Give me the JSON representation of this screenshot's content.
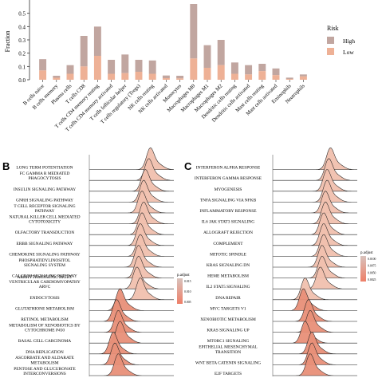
{
  "chart_data": [
    {
      "type": "bar",
      "panel": "A",
      "ylabel": "Fraction",
      "ylim": [
        0,
        0.6
      ],
      "yticks": [
        "0.0",
        "0.1",
        "0.2",
        "0.3",
        "0.4",
        "0.5"
      ],
      "legend_title": "Risk",
      "legend_position": "right",
      "categories": [
        "B cells naive",
        "B cells memory",
        "Plasma cells",
        "T cells CD8",
        "T cells CD4 memory resting",
        "T cells CD4 memory activated",
        "T cells follicular helper",
        "T cells regulatory (Tregs)",
        "NK cells resting",
        "NK cells activated",
        "Monocytes",
        "Macrophages M0",
        "Macrophages M1",
        "Macrophages M2",
        "Dendritic cells resting",
        "Dendritic cells activated",
        "Mast cells resting",
        "Mast cells activated",
        "Eosinophils",
        "Neutrophils"
      ],
      "series": [
        {
          "name": "High",
          "color": "#c1a6a0",
          "values": [
            0.085,
            0.015,
            0.065,
            0.23,
            0.22,
            0.105,
            0.14,
            0.09,
            0.1,
            0.02,
            0.02,
            0.41,
            0.17,
            0.19,
            0.085,
            0.07,
            0.055,
            0.05,
            0.01,
            0.015
          ]
        },
        {
          "name": "Low",
          "color": "#eeb196",
          "values": [
            0.07,
            0.015,
            0.045,
            0.1,
            0.18,
            0.045,
            0.05,
            0.06,
            0.045,
            0.012,
            0.01,
            0.16,
            0.09,
            0.11,
            0.045,
            0.04,
            0.065,
            0.035,
            0.006,
            0.025
          ]
        }
      ]
    },
    {
      "type": "ridge",
      "panel": "B",
      "legend_title": "p.adjust",
      "legend_ticks": [
        "0.015",
        "0.010",
        "0.005"
      ],
      "categories": [
        "LONG TERM POTENTIATION",
        "FC GAMMA R MEDIATED\nPHAGOCYTOSIS",
        "INSULIN SIGNALING PATHWAY",
        "GNRH SIGNALING PATHWAY",
        "T CELL RECEPTOR SIGNALING\nPATHWAY",
        "NATURAL KILLER CELL MEDIATED\nCYTOTOXICITY",
        "OLFACTORY TRANSDUCTION",
        "ERBB SIGNALING PATHWAY",
        "CHEMOKINE SIGNALING PATHWAY",
        "PHOSPHATIDYLINOSITOL\nSIGNALING SYSTEM",
        "CALCIUM SIGNALING PATHWAY",
        "ARRHYTHMOGENIC RIGHT\nVENTRICULAR CARDIOMYOPATHY\nARVC",
        "ENDOCYTOSIS",
        "GLUTATHIONE METABOLISM",
        "RETINOL METABOLISM",
        "METABOLISM OF XENOBIOTICS BY\nCYTOCHROME P450",
        "BASAL CELL CARCINOMA",
        "DNA REPLICATION",
        "ASCORBATE AND ALDARATE\nMETABOLISM",
        "PENTOSE AND GLUCURONATE\nINTERCONVERSIONS"
      ],
      "peaks": [
        0.72,
        0.7,
        0.66,
        0.64,
        0.62,
        0.64,
        0.62,
        0.6,
        0.6,
        0.58,
        0.58,
        0.56,
        0.6,
        0.36,
        0.32,
        0.34,
        0.36,
        0.28,
        0.3,
        0.34
      ]
    },
    {
      "type": "ridge",
      "panel": "C",
      "legend_title": "p.adjust",
      "legend_ticks": [
        "0.0100",
        "0.0075",
        "0.0050",
        "0.0025"
      ],
      "categories": [
        "INTERFERON ALPHA RESPONSE",
        "INTERFERON GAMMA RESPONSE",
        "MYOGENESIS",
        "TNFA SIGNALING VIA NFKB",
        "INFLAMMATORY RESPONSE",
        "IL6 JAK STAT3 SIGNALING",
        "ALLOGRAFT REJECTION",
        "COMPLEMENT",
        "MITOTIC SPINDLE",
        "KRAS SIGNALING DN",
        "HEME METABOLISM",
        "IL2 STAT5 SIGNALING",
        "DNA REPAIR",
        "MYC TARGETS V1",
        "XENOBIOTIC METABOLISM",
        "KRAS SIGNALING UP",
        "MTORC1 SIGNALING",
        "EPITHELIAL MESENCHYMAL\nTRANSITION",
        "WNT BETA CATENIN SIGNALING",
        "E2F TARGETS"
      ],
      "peaks": [
        0.68,
        0.66,
        0.64,
        0.64,
        0.62,
        0.62,
        0.6,
        0.6,
        0.6,
        0.58,
        0.58,
        0.56,
        0.38,
        0.36,
        0.42,
        0.44,
        0.38,
        0.46,
        0.46,
        0.44
      ]
    }
  ],
  "panel_labels": [
    "B",
    "C"
  ]
}
